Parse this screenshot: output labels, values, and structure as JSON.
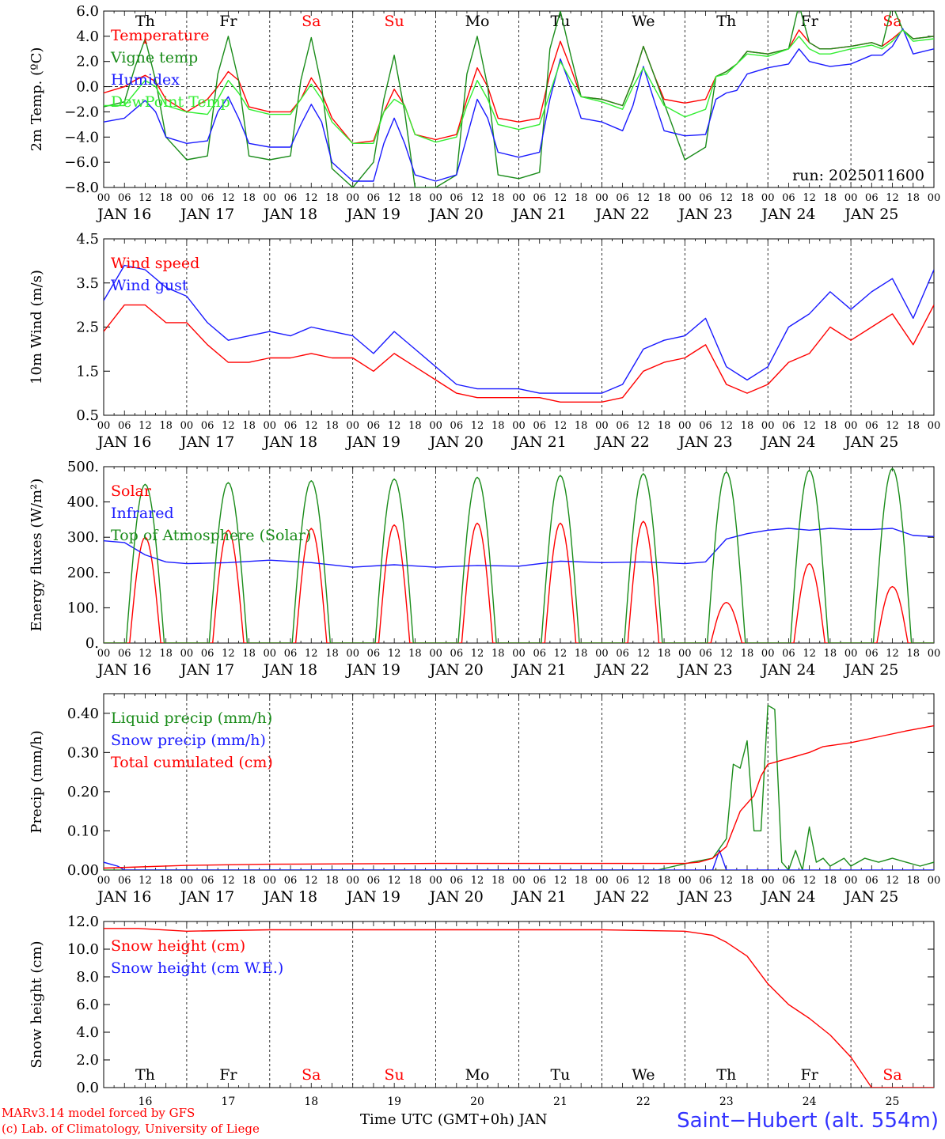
{
  "footer": {
    "credit_line1": "MARv3.14 model forced by GFS",
    "credit_line2": "(c) Lab. of Climatology, University of Liege",
    "x_axis_label": "Time UTC (GMT+0h) JAN",
    "station": "Saint−Hubert (alt. 554m)"
  },
  "colors": {
    "red": "#ff0000",
    "green": "#1a8c1a",
    "blue": "#1a1aff",
    "lightgreen": "#33ee33",
    "weekend": "#ff0000",
    "weekday": "#000000"
  },
  "chart_data": [
    {
      "type": "line",
      "panel": "temperature",
      "ylabel": "2m Temp. (ºC)",
      "ylim": [
        -8,
        6
      ],
      "yticks": [
        "−8.0",
        "−6.0",
        "−4.0",
        "−2.0",
        "0.0",
        "2.0",
        "4.0",
        "6.0"
      ],
      "ytick_values": [
        -8,
        -6,
        -4,
        -2,
        0,
        2,
        4,
        6
      ],
      "zero_line": true,
      "annotation": "run: 2025011600",
      "day_labels": [
        "Th",
        "Fr",
        "Sa",
        "Su",
        "Mo",
        "Tu",
        "We",
        "Th",
        "Fr",
        "Sa"
      ],
      "hour_labels": [
        "00",
        "06",
        "12",
        "18"
      ],
      "date_labels": [
        "JAN 16",
        "JAN 17",
        "JAN 18",
        "JAN 19",
        "JAN 20",
        "JAN 21",
        "JAN 22",
        "JAN 23",
        "JAN 24",
        "JAN 25"
      ],
      "x_hours": [
        0,
        6,
        9,
        12,
        15,
        18,
        24,
        30,
        33,
        36,
        39,
        42,
        48,
        54,
        57,
        60,
        63,
        66,
        72,
        78,
        81,
        84,
        87,
        90,
        96,
        102,
        105,
        108,
        111,
        114,
        120,
        126,
        129,
        132,
        135,
        138,
        144,
        150,
        153,
        156,
        159,
        162,
        168,
        174,
        177,
        180,
        183,
        186,
        192,
        198,
        201,
        204,
        207,
        210,
        216,
        222,
        225,
        228,
        231,
        234,
        240
      ],
      "series": [
        {
          "name": "Temperature",
          "color": "#ff0000",
          "values": [
            -0.5,
            0.0,
            0.5,
            0.9,
            0.4,
            -1.0,
            -2.0,
            -1.0,
            0.0,
            1.2,
            0.5,
            -1.6,
            -2.0,
            -2.0,
            -1.0,
            0.7,
            -0.5,
            -2.5,
            -4.5,
            -4.3,
            -2.0,
            -0.2,
            -1.5,
            -3.8,
            -4.2,
            -3.8,
            -1.0,
            1.5,
            0.0,
            -2.5,
            -2.8,
            -2.5,
            1.0,
            3.6,
            1.5,
            -0.8,
            -1.0,
            -1.5,
            0.5,
            3.2,
            1.0,
            -1.0,
            -1.3,
            -1.0,
            0.8,
            1.2,
            1.8,
            2.8,
            2.6,
            3.0,
            4.5,
            3.5,
            3.0,
            3.0,
            3.2,
            3.5,
            3.2,
            3.8,
            4.5,
            3.8,
            4.0
          ]
        },
        {
          "name": "Vigne temp",
          "color": "#1a8c1a",
          "values": [
            -1.6,
            -1.2,
            1.5,
            3.8,
            0.5,
            -4.0,
            -5.8,
            -5.5,
            1.0,
            4.0,
            0.5,
            -5.5,
            -5.8,
            -5.5,
            0.5,
            3.9,
            0.0,
            -6.5,
            -8.0,
            -6.0,
            -1.0,
            2.5,
            -2.0,
            -8.0,
            -8.0,
            -7.0,
            1.0,
            4.0,
            0.0,
            -7.0,
            -7.3,
            -6.8,
            3.0,
            6.0,
            2.5,
            -0.8,
            -1.0,
            -1.5,
            0.5,
            3.2,
            1.0,
            -1.3,
            -5.8,
            -4.8,
            0.8,
            1.2,
            1.8,
            2.8,
            2.6,
            3.0,
            6.5,
            3.5,
            3.0,
            3.0,
            3.2,
            3.5,
            3.2,
            6.5,
            4.5,
            3.8,
            4.0
          ]
        },
        {
          "name": "Humidex",
          "color": "#1a1aff",
          "values": [
            -2.8,
            -2.5,
            -1.8,
            -1.1,
            -2.0,
            -4.0,
            -4.5,
            -4.3,
            -2.0,
            -0.8,
            -2.5,
            -4.5,
            -4.8,
            -4.8,
            -3.0,
            -1.4,
            -2.8,
            -6.0,
            -7.5,
            -7.5,
            -4.5,
            -2.5,
            -4.5,
            -7.0,
            -7.5,
            -7.0,
            -4.0,
            -1.0,
            -2.5,
            -5.2,
            -5.6,
            -5.2,
            -1.0,
            2.2,
            0.0,
            -2.5,
            -2.8,
            -3.5,
            -1.5,
            1.6,
            -1.0,
            -3.5,
            -3.9,
            -3.8,
            -1.0,
            -0.5,
            -0.3,
            1.0,
            1.5,
            1.8,
            3.0,
            2.0,
            1.8,
            1.6,
            1.8,
            2.5,
            2.5,
            3.2,
            4.6,
            2.6,
            3.0
          ]
        },
        {
          "name": "DewPoint Temp",
          "color": "#33ee33",
          "values": [
            -1.5,
            -1.5,
            -0.5,
            0.5,
            0.0,
            -1.5,
            -2.0,
            -2.2,
            -1.0,
            0.5,
            -0.5,
            -1.8,
            -2.2,
            -2.2,
            -1.0,
            0.2,
            -1.0,
            -2.8,
            -4.5,
            -4.5,
            -2.0,
            -1.0,
            -1.5,
            -3.8,
            -4.4,
            -4.0,
            -1.5,
            0.5,
            -1.0,
            -3.0,
            -3.4,
            -3.0,
            -0.5,
            2.0,
            0.5,
            -0.8,
            -1.2,
            -1.8,
            0.0,
            1.5,
            0.0,
            -1.5,
            -2.4,
            -1.8,
            0.8,
            1.0,
            1.8,
            2.6,
            2.4,
            3.0,
            4.0,
            3.0,
            2.6,
            2.6,
            3.0,
            3.3,
            3.0,
            3.6,
            4.5,
            3.6,
            3.8
          ]
        }
      ]
    },
    {
      "type": "line",
      "panel": "wind",
      "ylabel": "10m Wind (m/s)",
      "ylim": [
        0.5,
        4.5
      ],
      "yticks": [
        "0.5",
        "1.5",
        "2.5",
        "3.5",
        "4.5"
      ],
      "ytick_values": [
        0.5,
        1.5,
        2.5,
        3.5,
        4.5
      ],
      "hour_labels": [
        "00",
        "06",
        "12",
        "18"
      ],
      "date_labels": [
        "JAN 16",
        "JAN 17",
        "JAN 18",
        "JAN 19",
        "JAN 20",
        "JAN 21",
        "JAN 22",
        "JAN 23",
        "JAN 24",
        "JAN 25"
      ],
      "x_hours": [
        0,
        6,
        12,
        18,
        24,
        30,
        36,
        42,
        48,
        54,
        60,
        66,
        72,
        78,
        84,
        90,
        96,
        102,
        108,
        114,
        120,
        126,
        132,
        138,
        144,
        150,
        156,
        162,
        168,
        174,
        180,
        186,
        192,
        198,
        204,
        210,
        216,
        222,
        228,
        234,
        240
      ],
      "series": [
        {
          "name": "Wind speed",
          "color": "#ff0000",
          "values": [
            2.4,
            3.0,
            3.0,
            2.6,
            2.6,
            2.1,
            1.7,
            1.7,
            1.8,
            1.8,
            1.9,
            1.8,
            1.8,
            1.5,
            1.9,
            1.6,
            1.3,
            1.0,
            0.9,
            0.9,
            0.9,
            0.9,
            0.8,
            0.8,
            0.8,
            0.9,
            1.5,
            1.7,
            1.8,
            2.1,
            1.2,
            1.0,
            1.2,
            1.7,
            1.9,
            2.5,
            2.2,
            2.5,
            2.8,
            2.1,
            3.0
          ]
        },
        {
          "name": "Wind gust",
          "color": "#1a1aff",
          "values": [
            3.1,
            3.9,
            3.8,
            3.4,
            3.2,
            2.6,
            2.2,
            2.3,
            2.4,
            2.3,
            2.5,
            2.4,
            2.3,
            1.9,
            2.4,
            2.0,
            1.6,
            1.2,
            1.1,
            1.1,
            1.1,
            1.0,
            1.0,
            1.0,
            1.0,
            1.2,
            2.0,
            2.2,
            2.3,
            2.7,
            1.6,
            1.3,
            1.6,
            2.5,
            2.8,
            3.3,
            2.9,
            3.3,
            3.6,
            2.7,
            3.8
          ]
        }
      ]
    },
    {
      "type": "line",
      "panel": "energy",
      "ylabel": "Energy fluxes (W/m²)",
      "ylim": [
        0,
        500
      ],
      "yticks": [
        "0.",
        "100.",
        "200.",
        "300.",
        "400.",
        "500."
      ],
      "ytick_values": [
        0,
        100,
        200,
        300,
        400,
        500
      ],
      "hour_labels": [
        "00",
        "06",
        "12",
        "18"
      ],
      "date_labels": [
        "JAN 16",
        "JAN 17",
        "JAN 18",
        "JAN 19",
        "JAN 20",
        "JAN 21",
        "JAN 22",
        "JAN 23",
        "JAN 24",
        "JAN 25"
      ],
      "series": [
        {
          "name": "Solar",
          "color": "#ff0000",
          "peaks": [
            300,
            320,
            325,
            335,
            340,
            340,
            345,
            115,
            225,
            160
          ]
        },
        {
          "name": "Infrared",
          "color": "#1a1aff",
          "x_hours": [
            0,
            6,
            12,
            18,
            24,
            36,
            48,
            60,
            72,
            84,
            96,
            108,
            120,
            132,
            144,
            156,
            168,
            174,
            180,
            186,
            192,
            198,
            204,
            210,
            216,
            222,
            228,
            234,
            240
          ],
          "values": [
            290,
            285,
            250,
            230,
            225,
            228,
            235,
            228,
            215,
            222,
            215,
            220,
            218,
            232,
            228,
            230,
            225,
            230,
            295,
            310,
            320,
            325,
            320,
            325,
            322,
            322,
            325,
            305,
            302
          ]
        },
        {
          "name": "Top of Atmosphere (Solar)",
          "color": "#1a8c1a",
          "peaks": [
            450,
            455,
            460,
            465,
            470,
            475,
            480,
            485,
            490,
            495
          ]
        }
      ]
    },
    {
      "type": "line",
      "panel": "precip",
      "ylabel": "Precip (mm/h)",
      "ylim": [
        0,
        0.45
      ],
      "yticks": [
        "0.00",
        "0.10",
        "0.20",
        "0.30",
        "0.40"
      ],
      "ytick_values": [
        0,
        0.1,
        0.2,
        0.3,
        0.4
      ],
      "hour_labels": [
        "00",
        "06",
        "12",
        "18"
      ],
      "date_labels": [
        "JAN 16",
        "JAN 17",
        "JAN 18",
        "JAN 19",
        "JAN 20",
        "JAN 21",
        "JAN 22",
        "JAN 23",
        "JAN 24",
        "JAN 25"
      ],
      "series": [
        {
          "name": "Liquid precip (mm/h)",
          "color": "#1a8c1a",
          "x_hours": [
            0,
            160,
            170,
            176,
            180,
            182,
            184,
            186,
            188,
            190,
            192,
            194,
            196,
            198,
            200,
            202,
            204,
            206,
            208,
            210,
            212,
            214,
            216,
            220,
            224,
            228,
            232,
            236,
            240
          ],
          "values": [
            0,
            0,
            0.02,
            0.03,
            0.08,
            0.27,
            0.26,
            0.33,
            0.1,
            0.1,
            0.42,
            0.41,
            0.02,
            0.0,
            0.05,
            0.0,
            0.11,
            0.02,
            0.03,
            0.01,
            0.02,
            0.03,
            0.01,
            0.03,
            0.02,
            0.03,
            0.02,
            0.01,
            0.02
          ]
        },
        {
          "name": "Snow precip (mm/h)",
          "color": "#1a1aff",
          "x_hours": [
            0,
            2,
            4,
            6,
            8,
            170,
            176,
            178,
            180,
            182,
            240
          ],
          "values": [
            0.02,
            0.015,
            0.01,
            0.0,
            0.0,
            0.0,
            0.0,
            0.05,
            0.0,
            0.0,
            0.0
          ]
        },
        {
          "name": "Total cumulated (cm)",
          "color": "#ff0000",
          "x_hours": [
            0,
            24,
            48,
            72,
            96,
            120,
            144,
            168,
            172,
            176,
            180,
            184,
            188,
            190,
            192,
            196,
            200,
            204,
            208,
            216,
            224,
            232,
            240
          ],
          "values": [
            0.005,
            0.012,
            0.015,
            0.016,
            0.017,
            0.017,
            0.017,
            0.017,
            0.02,
            0.03,
            0.06,
            0.15,
            0.19,
            0.24,
            0.27,
            0.28,
            0.29,
            0.3,
            0.315,
            0.325,
            0.34,
            0.355,
            0.368
          ]
        }
      ]
    },
    {
      "type": "line",
      "panel": "snow",
      "ylabel": "Snow height (cm)",
      "ylim": [
        0,
        12
      ],
      "yticks": [
        "0.0",
        "2.0",
        "4.0",
        "6.0",
        "8.0",
        "10.0",
        "12.0"
      ],
      "ytick_values": [
        0,
        2,
        4,
        6,
        8,
        10,
        12
      ],
      "day_labels": [
        "Th",
        "Fr",
        "Sa",
        "Su",
        "Mo",
        "Tu",
        "We",
        "Th",
        "Fr",
        "Sa"
      ],
      "date_numbers": [
        "16",
        "17",
        "18",
        "19",
        "20",
        "21",
        "22",
        "23",
        "24",
        "25"
      ],
      "series": [
        {
          "name": "Snow height (cm)",
          "color": "#ff0000",
          "x_hours": [
            0,
            10,
            24,
            48,
            72,
            96,
            120,
            144,
            168,
            176,
            180,
            186,
            192,
            198,
            204,
            210,
            216,
            222,
            228,
            232,
            234,
            240
          ],
          "values": [
            11.5,
            11.5,
            11.3,
            11.4,
            11.4,
            11.4,
            11.4,
            11.4,
            11.3,
            11.0,
            10.5,
            9.5,
            7.5,
            6.0,
            5.0,
            3.8,
            2.2,
            0.0,
            0.0,
            0.0,
            0.0,
            0.0
          ]
        },
        {
          "name": "Snow height (cm W.E.)",
          "color": "#1a1aff",
          "x_hours": [],
          "values": []
        }
      ]
    }
  ]
}
